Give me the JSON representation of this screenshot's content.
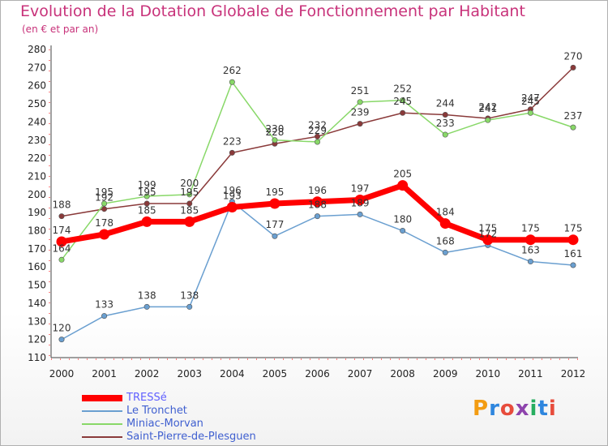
{
  "header": {
    "title": "Evolution de la Dotation Globale de Fonctionnement par Habitant",
    "subtitle": "(en € et par an)"
  },
  "logo": {
    "text": "Proxiti",
    "colors": [
      "#f39c12",
      "#2e86de",
      "#e74c3c",
      "#8e44ad",
      "#27ae60",
      "#2e86de",
      "#e74c3c"
    ]
  },
  "chart_data": {
    "type": "line",
    "x": [
      2000,
      2001,
      2002,
      2003,
      2004,
      2005,
      2006,
      2007,
      2008,
      2009,
      2010,
      2011,
      2012
    ],
    "ylim": [
      110,
      280
    ],
    "yticks": [
      110,
      120,
      130,
      140,
      150,
      160,
      170,
      180,
      190,
      200,
      210,
      220,
      230,
      240,
      250,
      260,
      270,
      280
    ],
    "grid": false,
    "legend_position": "bottom-left",
    "series": [
      {
        "name": "TRESSé",
        "color": "#ff0000",
        "values": [
          174,
          178,
          185,
          185,
          193,
          195,
          196,
          197,
          205,
          184,
          175,
          175,
          175
        ],
        "labels": [
          "174",
          "178",
          "185",
          "185",
          "193",
          "195",
          "196",
          "197",
          "205",
          "184",
          "175",
          "175",
          "175"
        ]
      },
      {
        "name": "Le Tronchet",
        "color": "#6a9fd0",
        "values": [
          120,
          133,
          138,
          138,
          196,
          177,
          188,
          189,
          180,
          168,
          172,
          163,
          161
        ],
        "labels": [
          "120",
          "133",
          "138",
          "138",
          "196",
          "177",
          "188",
          "189",
          "180",
          "168",
          "172",
          "163",
          "161"
        ]
      },
      {
        "name": "Miniac-Morvan",
        "color": "#88d868",
        "values": [
          164,
          195,
          199,
          200,
          262,
          230,
          229,
          251,
          252,
          233,
          241,
          245,
          237
        ],
        "labels": [
          "164",
          "195",
          "199",
          "200",
          "262",
          "230",
          "229",
          "251",
          "252",
          "233",
          "241",
          "245",
          "237"
        ]
      },
      {
        "name": "Saint-Pierre-de-Plesguen",
        "color": "#8a3a3a",
        "values": [
          188,
          192,
          195,
          195,
          223,
          228,
          232,
          239,
          245,
          244,
          242,
          247,
          270
        ],
        "labels": [
          "188",
          "192",
          "195",
          "195",
          "223",
          "228",
          "232",
          "239",
          "245",
          "244",
          "242",
          "247",
          "270"
        ]
      }
    ]
  }
}
